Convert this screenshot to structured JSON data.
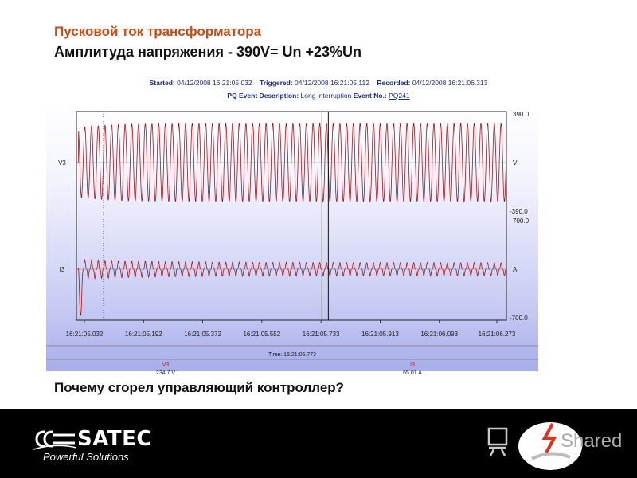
{
  "slide": {
    "title": "Пусковой ток трансформатора",
    "subtitle": "Амплитуда напряжения - 390V= Un +23%Un",
    "question": "Почему сгорел управляющий контроллер?"
  },
  "event": {
    "started_label": "Started:",
    "started_value": "04/12/2008 16:21:05.032",
    "triggered_label": "Triggered:",
    "triggered_value": "04/12/2008 16:21:05.112",
    "recorded_label": "Recorded:",
    "recorded_value": "04/12/2008 16:21:06.313",
    "description_label": "PQ Event Description:",
    "description_value": "Long interruption",
    "event_no_label": "Event No.:",
    "event_no_value": "PQ241"
  },
  "cursor_readout": {
    "time_label": "Time:",
    "time_value": "16:21:05.773",
    "channels": [
      {
        "name": "V3",
        "value": "234.7 V"
      },
      {
        "name": "I3",
        "value": "65.01 A"
      }
    ]
  },
  "chart_data": {
    "type": "line",
    "x_tick_labels": [
      "16:21:05.032",
      "16:21:05.192",
      "16:21:05.372",
      "16:21:05.552",
      "16:21:05.733",
      "16:21:05.913",
      "16:21:06.093",
      "16:21:06.273"
    ],
    "x_start_s": 0,
    "x_end_s": 1.281,
    "cursor_time_s": 0.741,
    "trigger_time_s": 0.08,
    "series": [
      {
        "name": "V3",
        "unit": "V",
        "top_label": "390.0",
        "bottom_label": "-390.0",
        "ylim": [
          -390,
          390
        ],
        "amplitude": 300,
        "start_s": 0.0,
        "color": "#a8121a"
      },
      {
        "name": "I3",
        "unit": "A",
        "top_label": "700.0",
        "bottom_label": "-700.0",
        "ylim": [
          -700,
          700
        ],
        "amplitude": 90,
        "inrush_peak": -600,
        "start_s": 0.0,
        "color": "#a8121a"
      }
    ],
    "grid": false
  },
  "colors": {
    "title": "#d04a10",
    "trace": "#a8121a",
    "info_text": "#1a2a8a",
    "footer_bg": "#000000"
  },
  "footer": {
    "brand": "SATEC",
    "tagline": "Powerful Solutions",
    "watermark": "Shared"
  }
}
